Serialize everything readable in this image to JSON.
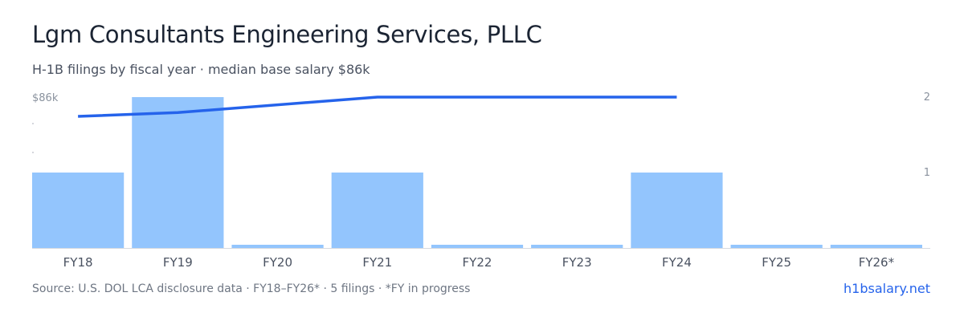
{
  "header": {
    "title": "Lgm Consultants Engineering Services, PLLC",
    "subtitle": "H-1B filings by fiscal year · median base salary $86k"
  },
  "footer": {
    "source": "Source: U.S. DOL LCA disclosure data · FY18–FY26* · 5 filings · *FY in progress",
    "site": "h1bsalary.net"
  },
  "colors": {
    "bar": "#93c5fd",
    "line": "#2563eb",
    "axis_text": "#8a929e",
    "baseline": "#d6dae0"
  },
  "chart_data": {
    "type": "bar",
    "categories": [
      "FY18",
      "FY19",
      "FY20",
      "FY21",
      "FY22",
      "FY23",
      "FY24",
      "FY25",
      "FY26*"
    ],
    "series": [
      {
        "type": "bar",
        "axis": "right",
        "values": [
          1,
          2,
          0,
          1,
          0,
          0,
          1,
          0,
          0
        ]
      },
      {
        "type": "line",
        "axis": "left",
        "values": [
          81,
          82,
          null,
          86,
          null,
          null,
          86,
          null,
          null
        ]
      }
    ],
    "left_axis": {
      "tick_labels": [
        "$86k"
      ]
    },
    "right_axis": {
      "ticks": [
        1,
        2
      ],
      "ylim": [
        0,
        2
      ]
    },
    "grid": false,
    "legend": "none"
  }
}
